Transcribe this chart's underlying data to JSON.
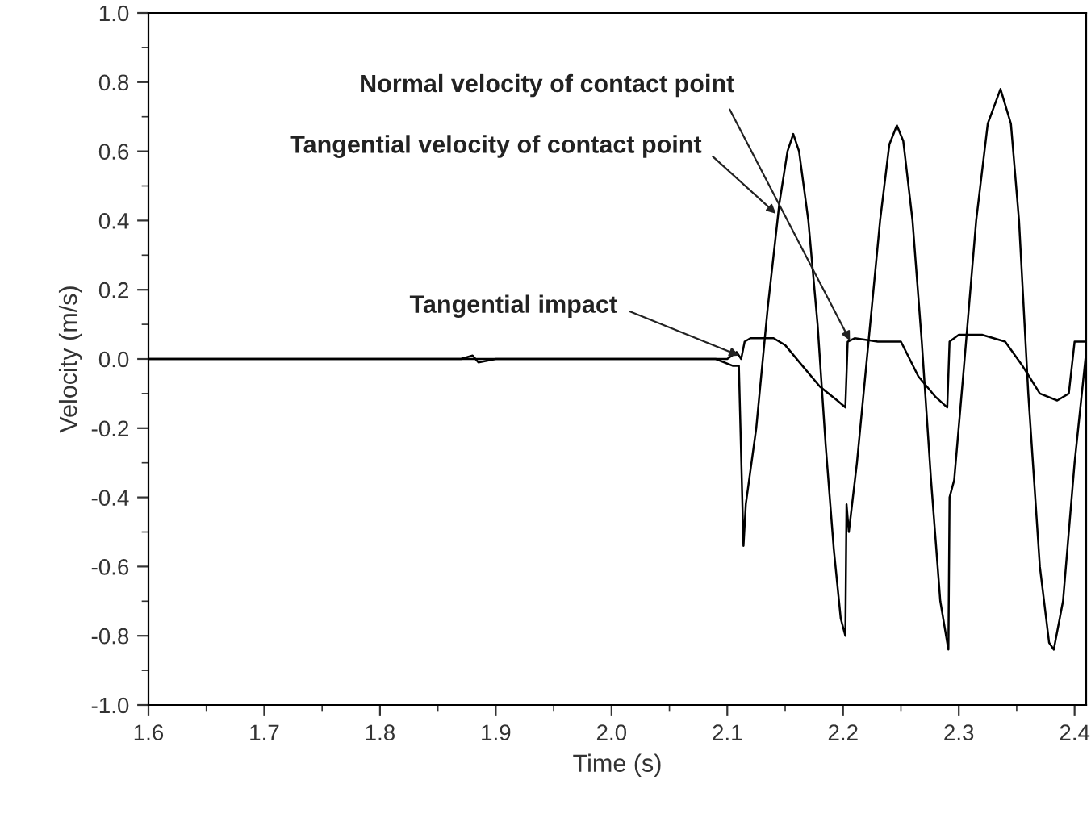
{
  "chart_data": {
    "type": "line",
    "xlabel": "Time (s)",
    "ylabel": "Velocity (m/s)",
    "xlim": [
      1.6,
      2.41
    ],
    "xticks": [
      1.6,
      1.7,
      1.8,
      1.9,
      {
        "value": 2.0,
        "label": "2.0"
      },
      2.1,
      2.2,
      2.3,
      2.4
    ],
    "ylim": [
      -1.0,
      1.0
    ],
    "yticks": [
      {
        "value": -1.0,
        "label": "-1.0"
      },
      {
        "value": -0.8,
        "label": "-0.8"
      },
      {
        "value": -0.6,
        "label": "-0.6"
      },
      {
        "value": -0.4,
        "label": "-0.4"
      },
      {
        "value": -0.2,
        "label": "-0.2"
      },
      {
        "value": 0.0,
        "label": "0.0"
      },
      {
        "value": 0.2,
        "label": "0.2"
      },
      {
        "value": 0.4,
        "label": "0.4"
      },
      {
        "value": 0.6,
        "label": "0.6"
      },
      {
        "value": 0.8,
        "label": "0.8"
      },
      {
        "value": 1.0,
        "label": "1.0"
      }
    ],
    "grid": false,
    "marker": "none",
    "line_style": "solid",
    "series": [
      {
        "color": "#000000",
        "x": [
          1.6,
          1.7,
          1.8,
          1.87,
          1.88,
          1.885,
          1.9,
          2.0,
          2.05,
          2.09,
          2.105,
          2.11,
          2.114,
          2.116,
          2.125,
          2.135,
          2.145,
          2.152,
          2.157,
          2.162,
          2.17,
          2.178,
          2.185,
          2.192,
          2.198,
          2.202,
          2.203,
          2.205,
          2.212,
          2.222,
          2.232,
          2.24,
          2.2465,
          2.252,
          2.26,
          2.268,
          2.276,
          2.284,
          2.291,
          2.292,
          2.296,
          2.305,
          2.315,
          2.325,
          2.336,
          2.345,
          2.352,
          2.36,
          2.37,
          2.378,
          2.382,
          2.39,
          2.4,
          2.41
        ],
        "values": [
          0.0,
          0.0,
          0.0,
          0.0,
          0.01,
          -0.01,
          0.0,
          0.0,
          0.0,
          0.0,
          -0.02,
          -0.02,
          -0.54,
          -0.42,
          -0.2,
          0.15,
          0.45,
          0.6,
          0.65,
          0.6,
          0.4,
          0.1,
          -0.25,
          -0.55,
          -0.75,
          -0.8,
          -0.42,
          -0.5,
          -0.3,
          0.05,
          0.4,
          0.62,
          0.675,
          0.63,
          0.4,
          0.05,
          -0.35,
          -0.7,
          -0.84,
          -0.4,
          -0.35,
          0.0,
          0.4,
          0.68,
          0.78,
          0.68,
          0.4,
          -0.1,
          -0.6,
          -0.82,
          -0.84,
          -0.7,
          -0.3,
          0.02
        ]
      },
      {
        "color": "#000000",
        "x": [
          1.6,
          1.8,
          1.9,
          2.0,
          2.1,
          2.108,
          2.112,
          2.115,
          2.12,
          2.13,
          2.14,
          2.15,
          2.165,
          2.18,
          2.195,
          2.202,
          2.204,
          2.21,
          2.23,
          2.25,
          2.265,
          2.28,
          2.29,
          2.292,
          2.3,
          2.32,
          2.34,
          2.355,
          2.37,
          2.385,
          2.395,
          2.4,
          2.41
        ],
        "values": [
          0.0,
          0.0,
          0.0,
          0.0,
          0.0,
          0.02,
          0.0,
          0.05,
          0.06,
          0.06,
          0.06,
          0.04,
          -0.02,
          -0.08,
          -0.12,
          -0.14,
          0.05,
          0.06,
          0.05,
          0.05,
          -0.05,
          -0.11,
          -0.14,
          0.05,
          0.07,
          0.07,
          0.05,
          -0.02,
          -0.1,
          -0.12,
          -0.1,
          0.05,
          0.05
        ]
      }
    ],
    "annotations": [
      {
        "text": "Normal velocity of contact point",
        "x": 2.206,
        "y": 0.053
      },
      {
        "text": "Tangential velocity of contact point",
        "x": 2.142,
        "y": 0.42
      },
      {
        "text": "Tangential impact",
        "x": 2.11,
        "y": 0.01
      }
    ]
  }
}
